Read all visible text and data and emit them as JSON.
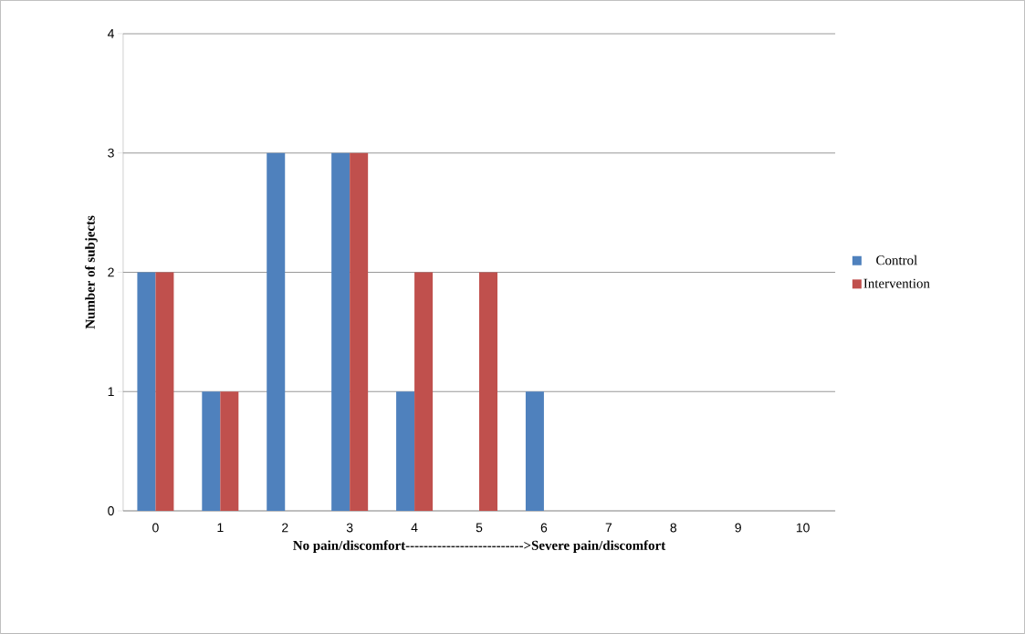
{
  "chart_data": {
    "type": "bar",
    "xlabel": "No pain/discomfort-------------------------->Severe pain/discomfort",
    "ylabel": "Number of subjects",
    "categories": [
      "0",
      "1",
      "2",
      "3",
      "4",
      "5",
      "6",
      "7",
      "8",
      "9",
      "10"
    ],
    "series": [
      {
        "name": "Control",
        "color": "#4f81bd",
        "values": [
          2,
          1,
          3,
          3,
          1,
          0,
          1,
          0,
          0,
          0,
          0
        ]
      },
      {
        "name": "Intervention",
        "color": "#c0504d",
        "values": [
          2,
          1,
          0,
          3,
          2,
          2,
          0,
          0,
          0,
          0,
          0
        ]
      }
    ],
    "ylim": [
      0,
      4
    ],
    "yticks": [
      0,
      1,
      2,
      3,
      4
    ],
    "grid": "y",
    "legend": "right"
  }
}
